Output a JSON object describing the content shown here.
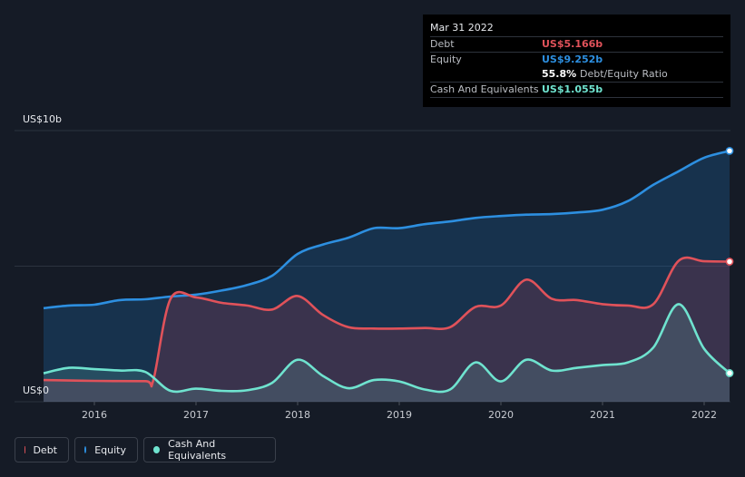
{
  "chart_data": {
    "type": "area",
    "y_axis": {
      "top_label": "US$10b",
      "bottom_label": "US$0",
      "ylim": [
        0,
        10
      ]
    },
    "x_ticks": [
      2016,
      2017,
      2018,
      2019,
      2020,
      2021,
      2022
    ],
    "xlim": [
      2015.5,
      2022.25
    ],
    "grid": true,
    "series": [
      {
        "name": "Equity",
        "color": "#2d8fe0",
        "values": [
          [
            2015.5,
            3.45
          ],
          [
            2015.75,
            3.55
          ],
          [
            2016.0,
            3.58
          ],
          [
            2016.25,
            3.75
          ],
          [
            2016.5,
            3.78
          ],
          [
            2016.75,
            3.88
          ],
          [
            2017.0,
            3.95
          ],
          [
            2017.25,
            4.1
          ],
          [
            2017.5,
            4.3
          ],
          [
            2017.75,
            4.65
          ],
          [
            2018.0,
            5.45
          ],
          [
            2018.25,
            5.8
          ],
          [
            2018.5,
            6.05
          ],
          [
            2018.75,
            6.4
          ],
          [
            2019.0,
            6.4
          ],
          [
            2019.25,
            6.55
          ],
          [
            2019.5,
            6.65
          ],
          [
            2019.75,
            6.78
          ],
          [
            2020.0,
            6.85
          ],
          [
            2020.25,
            6.9
          ],
          [
            2020.5,
            6.92
          ],
          [
            2020.75,
            6.98
          ],
          [
            2021.0,
            7.08
          ],
          [
            2021.25,
            7.4
          ],
          [
            2021.5,
            8.0
          ],
          [
            2021.75,
            8.5
          ],
          [
            2022.0,
            9.0
          ],
          [
            2022.25,
            9.252
          ]
        ]
      },
      {
        "name": "Debt",
        "color": "#e0525a",
        "values": [
          [
            2015.5,
            0.8
          ],
          [
            2016.0,
            0.77
          ],
          [
            2016.5,
            0.76
          ],
          [
            2016.58,
            0.8
          ],
          [
            2016.75,
            3.8
          ],
          [
            2017.0,
            3.85
          ],
          [
            2017.25,
            3.65
          ],
          [
            2017.5,
            3.55
          ],
          [
            2017.75,
            3.4
          ],
          [
            2018.0,
            3.9
          ],
          [
            2018.25,
            3.2
          ],
          [
            2018.5,
            2.75
          ],
          [
            2018.75,
            2.7
          ],
          [
            2019.0,
            2.7
          ],
          [
            2019.25,
            2.72
          ],
          [
            2019.5,
            2.75
          ],
          [
            2019.75,
            3.5
          ],
          [
            2020.0,
            3.55
          ],
          [
            2020.25,
            4.5
          ],
          [
            2020.5,
            3.8
          ],
          [
            2020.75,
            3.75
          ],
          [
            2021.0,
            3.6
          ],
          [
            2021.25,
            3.55
          ],
          [
            2021.5,
            3.6
          ],
          [
            2021.75,
            5.2
          ],
          [
            2022.0,
            5.18
          ],
          [
            2022.25,
            5.166
          ]
        ]
      },
      {
        "name": "Cash And Equivalents",
        "color": "#6fe3cf",
        "values": [
          [
            2015.5,
            1.05
          ],
          [
            2015.75,
            1.25
          ],
          [
            2016.0,
            1.2
          ],
          [
            2016.25,
            1.15
          ],
          [
            2016.5,
            1.1
          ],
          [
            2016.75,
            0.4
          ],
          [
            2017.0,
            0.48
          ],
          [
            2017.25,
            0.4
          ],
          [
            2017.5,
            0.42
          ],
          [
            2017.75,
            0.7
          ],
          [
            2018.0,
            1.55
          ],
          [
            2018.25,
            0.95
          ],
          [
            2018.5,
            0.5
          ],
          [
            2018.75,
            0.8
          ],
          [
            2019.0,
            0.75
          ],
          [
            2019.25,
            0.45
          ],
          [
            2019.5,
            0.45
          ],
          [
            2019.75,
            1.45
          ],
          [
            2020.0,
            0.75
          ],
          [
            2020.25,
            1.55
          ],
          [
            2020.5,
            1.15
          ],
          [
            2020.75,
            1.25
          ],
          [
            2021.0,
            1.35
          ],
          [
            2021.25,
            1.45
          ],
          [
            2021.5,
            2.0
          ],
          [
            2021.75,
            3.6
          ],
          [
            2022.0,
            1.95
          ],
          [
            2022.25,
            1.055
          ]
        ]
      }
    ]
  },
  "tooltip": {
    "date": "Mar 31 2022",
    "debt_label": "Debt",
    "debt_value": "US$5.166b",
    "equity_label": "Equity",
    "equity_value": "US$9.252b",
    "ratio_value": "55.8%",
    "ratio_label": "Debt/Equity Ratio",
    "cash_label": "Cash And Equivalents",
    "cash_value": "US$1.055b"
  },
  "legend": [
    {
      "label": "Debt",
      "color": "#e0525a"
    },
    {
      "label": "Equity",
      "color": "#2d8fe0"
    },
    {
      "label": "Cash And Equivalents",
      "color": "#6fe3cf"
    }
  ],
  "colors": {
    "background": "#151b26",
    "debt": "#e0525a",
    "equity": "#2d8fe0",
    "cash": "#6fe3cf"
  }
}
